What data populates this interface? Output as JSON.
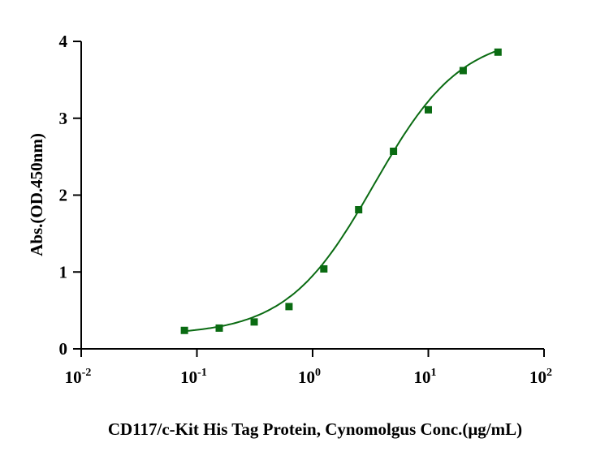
{
  "chart_data": {
    "type": "scatter",
    "title": "",
    "xlabel": "CD117/c-Kit His Tag Protein, Cynomolgus Conc.(μg/mL)",
    "ylabel": "Abs.(OD.450nm)",
    "x_scale": "log",
    "xlim": [
      0.01,
      100
    ],
    "ylim": [
      0,
      4
    ],
    "x_ticks": [
      {
        "base": "10",
        "exp": "-2",
        "value": 0.01
      },
      {
        "base": "10",
        "exp": "-1",
        "value": 0.1
      },
      {
        "base": "10",
        "exp": "0",
        "value": 1
      },
      {
        "base": "10",
        "exp": "1",
        "value": 10
      },
      {
        "base": "10",
        "exp": "2",
        "value": 100
      }
    ],
    "y_ticks": [
      "0",
      "1",
      "2",
      "3",
      "4"
    ],
    "grid": false,
    "series": [
      {
        "x": [
          0.078,
          0.156,
          0.3125,
          0.625,
          1.25,
          2.5,
          5,
          10,
          20,
          40
        ],
        "y": [
          0.24,
          0.27,
          0.35,
          0.55,
          1.04,
          1.81,
          2.57,
          3.11,
          3.62,
          3.86
        ],
        "marker": "square",
        "color": "#0a6b12",
        "fit": "sigmoidal curve"
      }
    ]
  }
}
